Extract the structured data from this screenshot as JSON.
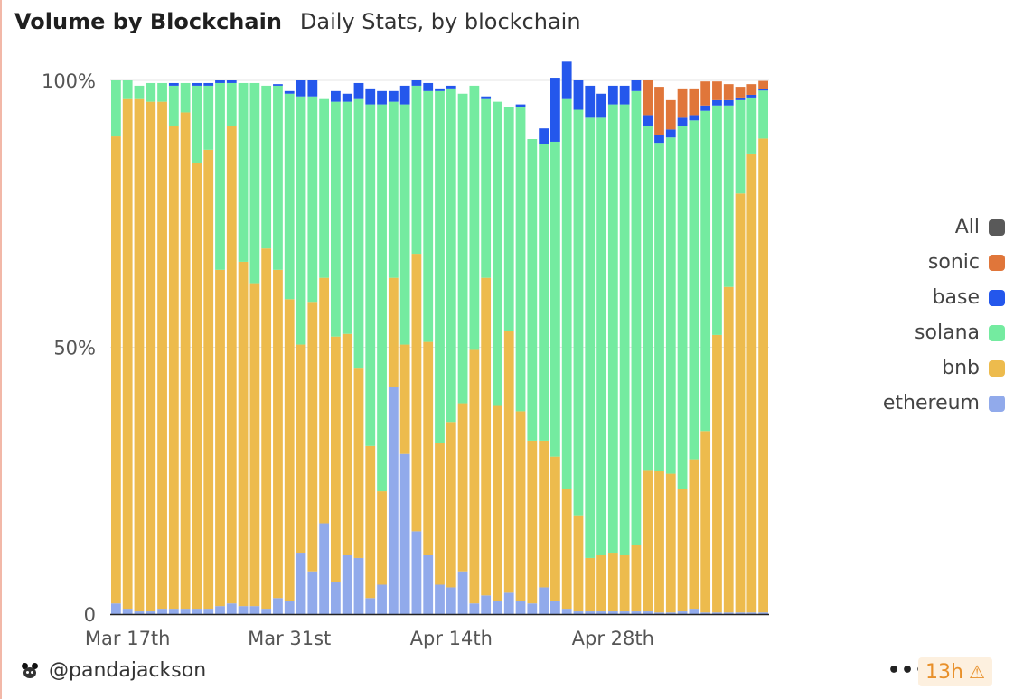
{
  "header": {
    "title": "Volume by Blockchain",
    "subtitle": "Daily Stats, by blockchain"
  },
  "legend": [
    {
      "label": "All",
      "color": "#595959"
    },
    {
      "label": "sonic",
      "color": "#e0763a"
    },
    {
      "label": "base",
      "color": "#2457ec"
    },
    {
      "label": "solana",
      "color": "#74eba0"
    },
    {
      "label": "bnb",
      "color": "#edbb4d"
    },
    {
      "label": "ethereum",
      "color": "#91aaeb"
    }
  ],
  "footer": {
    "username": "@pandajackson",
    "more": "•••",
    "age": "13h",
    "warning_icon": "warning-icon"
  },
  "chart_data": {
    "type": "bar",
    "stacked": true,
    "normalized": true,
    "xlabel": "",
    "ylabel": "",
    "ylim": [
      0,
      100
    ],
    "y_ticks": [
      "0",
      "50%",
      "100%"
    ],
    "x_ticks": [
      "Mar 17th",
      "Mar 31st",
      "Apr 14th",
      "Apr 28th"
    ],
    "x_tick_days": [
      1,
      15,
      29,
      43
    ],
    "categories": [
      "Mar 16",
      "Mar 17",
      "Mar 18",
      "Mar 19",
      "Mar 20",
      "Mar 21",
      "Mar 22",
      "Mar 23",
      "Mar 24",
      "Mar 25",
      "Mar 26",
      "Mar 27",
      "Mar 28",
      "Mar 29",
      "Mar 30",
      "Mar 31",
      "Apr 1",
      "Apr 2",
      "Apr 3",
      "Apr 4",
      "Apr 5",
      "Apr 6",
      "Apr 7",
      "Apr 8",
      "Apr 9",
      "Apr 10",
      "Apr 11",
      "Apr 12",
      "Apr 13",
      "Apr 14",
      "Apr 15",
      "Apr 16",
      "Apr 17",
      "Apr 18",
      "Apr 19",
      "Apr 20",
      "Apr 21",
      "Apr 22",
      "Apr 23",
      "Apr 24",
      "Apr 25",
      "Apr 26",
      "Apr 27",
      "Apr 28",
      "Apr 29",
      "Apr 30",
      "May 1",
      "May 2",
      "May 3",
      "May 4",
      "May 5",
      "May 6",
      "May 7",
      "May 8",
      "May 9",
      "May 10",
      "May 11"
    ],
    "series": [
      {
        "name": "ethereum",
        "color": "#91aaeb",
        "values": [
          2,
          1,
          0.5,
          0.5,
          1,
          1,
          1,
          1,
          1,
          1.5,
          2,
          1.5,
          1.5,
          1,
          3,
          2.5,
          11.5,
          8,
          17,
          6,
          11,
          10.5,
          3,
          5.5,
          42.5,
          30,
          15.5,
          11,
          5.5,
          5,
          8,
          2,
          3.5,
          2.5,
          4,
          2.5,
          2,
          5,
          2.5,
          1,
          0.5,
          0.5,
          0.5,
          0.5,
          0.5,
          0.5,
          0.5,
          0.3,
          0.3,
          0.5,
          1,
          0.3,
          0.3,
          0.3,
          0.3,
          0.3,
          0.3
        ]
      },
      {
        "name": "bnb",
        "color": "#edbb4d",
        "values": [
          87.5,
          95.5,
          96,
          95.5,
          95,
          90.5,
          93,
          83.5,
          86,
          63,
          89.5,
          64.5,
          60.5,
          67.5,
          61.5,
          56.5,
          39,
          50.5,
          46,
          46,
          41.5,
          35.5,
          28.5,
          17.5,
          20.5,
          20.5,
          52,
          40,
          26.5,
          31,
          31.5,
          47.5,
          59.5,
          36.5,
          49,
          35.5,
          30.5,
          27.5,
          27,
          22.5,
          18,
          10,
          10.5,
          11,
          10.5,
          12.5,
          26.5,
          26.5,
          26,
          23,
          28,
          34,
          52,
          61,
          78.5,
          86,
          88.8
        ]
      },
      {
        "name": "solana",
        "color": "#74eba0",
        "values": [
          10.5,
          3.5,
          2.5,
          3.5,
          3.5,
          7.5,
          5.5,
          14.5,
          12,
          35,
          8,
          33.5,
          37.5,
          30.5,
          34.5,
          38.5,
          46.5,
          38.5,
          33.5,
          44,
          43.5,
          50.5,
          64,
          72.5,
          33,
          45,
          31.5,
          47,
          66,
          62.5,
          58,
          49.5,
          33.5,
          57,
          42,
          57,
          56.5,
          55.5,
          59,
          73,
          76,
          82.5,
          82,
          84,
          84.5,
          85,
          64.5,
          61.5,
          63,
          68,
          63.5,
          60,
          43,
          34,
          17.5,
          10.5,
          9
        ]
      },
      {
        "name": "base",
        "color": "#2457ec",
        "values": [
          0,
          0,
          0,
          0,
          0,
          0.5,
          0,
          0.5,
          0.5,
          0.5,
          0.5,
          0,
          0,
          0,
          0.3,
          0.5,
          3,
          3,
          0,
          2,
          1.5,
          3,
          3,
          2.5,
          2,
          3.5,
          1,
          1.5,
          0.5,
          0.5,
          0,
          0,
          0.5,
          0,
          0,
          0.5,
          0,
          3,
          12,
          7,
          5.5,
          6,
          4.5,
          3.5,
          3.5,
          2,
          2,
          1.5,
          1.5,
          1.5,
          1,
          1,
          1,
          1,
          0.5,
          0.5,
          0.3
        ]
      },
      {
        "name": "sonic",
        "color": "#e0763a",
        "values": [
          0,
          0,
          0,
          0,
          0,
          0,
          0,
          0,
          0,
          0,
          0,
          0,
          0,
          0,
          0,
          0,
          0,
          0,
          0,
          0,
          0,
          0,
          0,
          0,
          0,
          0,
          0,
          0,
          0,
          0,
          0,
          0,
          0,
          0,
          0,
          0,
          0,
          0,
          0,
          0,
          0,
          0,
          0,
          0,
          0,
          0,
          6.5,
          9,
          5.5,
          5.5,
          5,
          4.5,
          3.5,
          3,
          2,
          2,
          1.5
        ]
      }
    ]
  }
}
